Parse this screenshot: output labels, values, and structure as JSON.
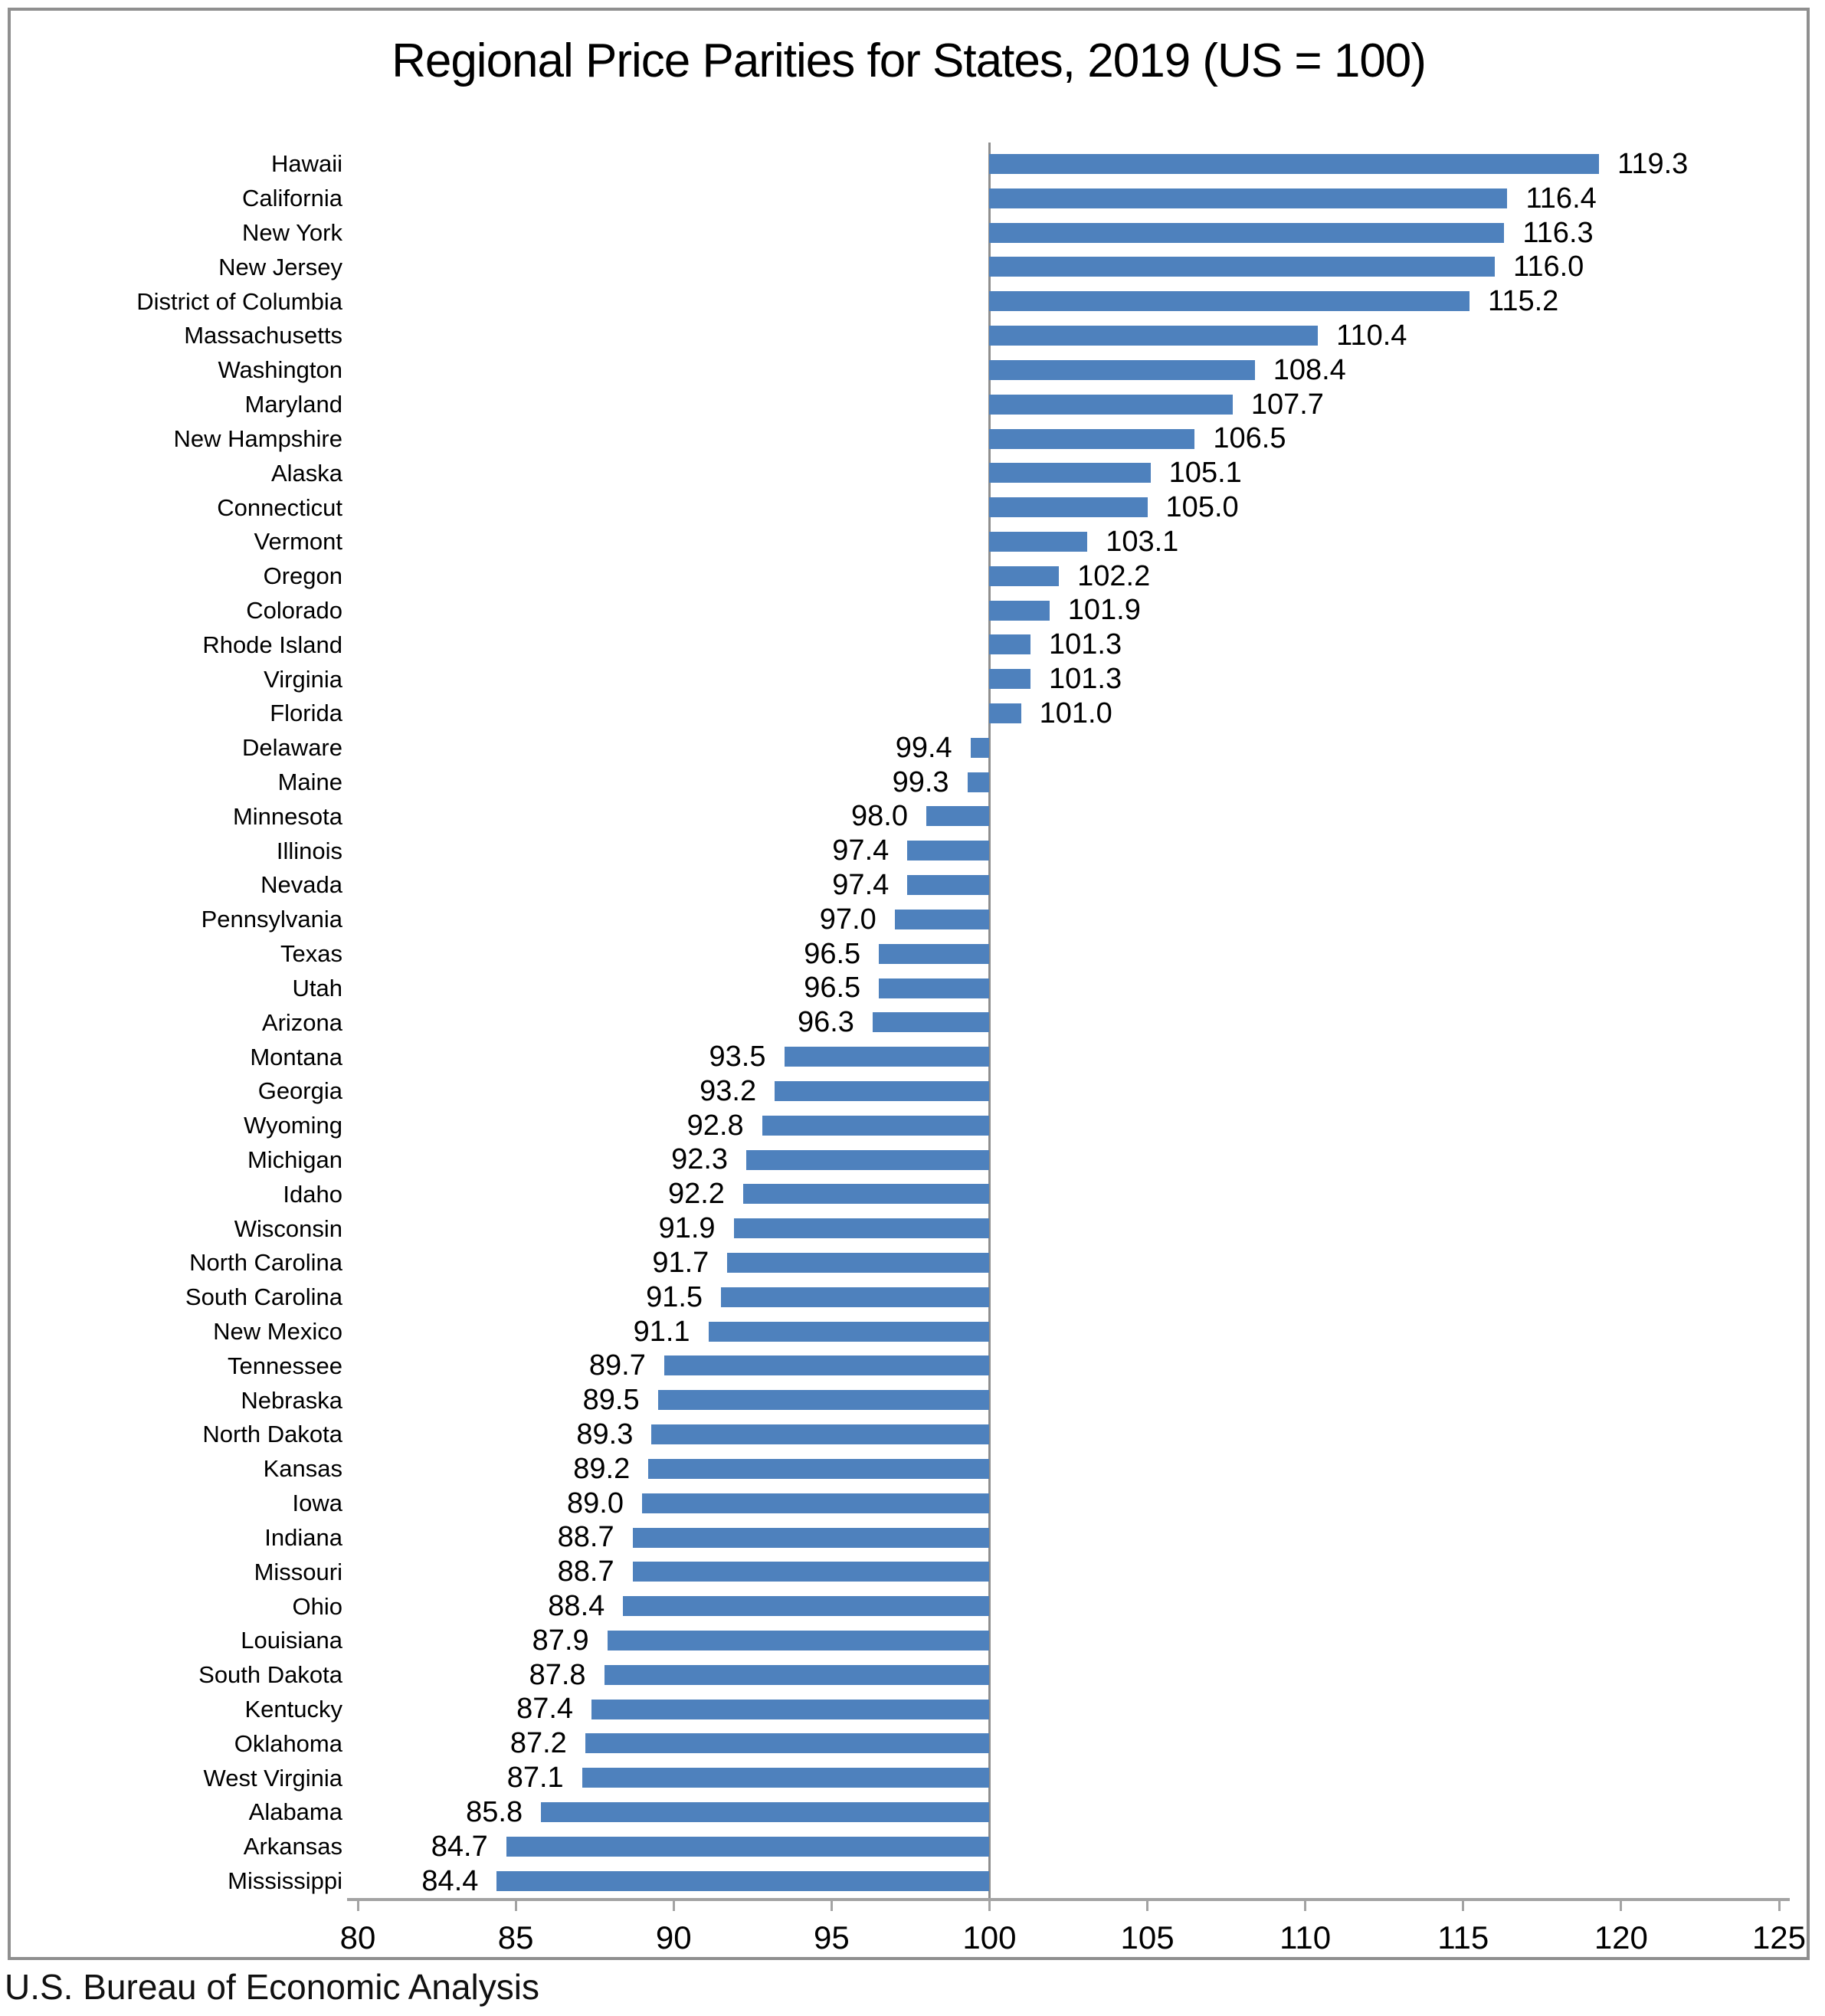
{
  "title": "Regional Price Parities for States, 2019 (US = 100)",
  "source": "U.S. Bureau of Economic Analysis",
  "colors": {
    "bar": "#4E81BD",
    "baseline": "#8e8e8e",
    "axis": "#a3a3a3",
    "frame": "#8f8f8f"
  },
  "chart_data": {
    "type": "bar",
    "orientation": "horizontal",
    "title": "Regional Price Parities for States, 2019 (US = 100)",
    "xlabel": "",
    "ylabel": "",
    "baseline": 100,
    "xlim": [
      80,
      125
    ],
    "x_ticks": [
      80,
      85,
      90,
      95,
      100,
      105,
      110,
      115,
      120,
      125
    ],
    "grid": false,
    "legend": null,
    "value_format_decimals": 1,
    "categories": [
      "Hawaii",
      "California",
      "New York",
      "New Jersey",
      "District of Columbia",
      "Massachusetts",
      "Washington",
      "Maryland",
      "New Hampshire",
      "Alaska",
      "Connecticut",
      "Vermont",
      "Oregon",
      "Colorado",
      "Rhode Island",
      "Virginia",
      "Florida",
      "Delaware",
      "Maine",
      "Minnesota",
      "Illinois",
      "Nevada",
      "Pennsylvania",
      "Texas",
      "Utah",
      "Arizona",
      "Montana",
      "Georgia",
      "Wyoming",
      "Michigan",
      "Idaho",
      "Wisconsin",
      "North Carolina",
      "South Carolina",
      "New Mexico",
      "Tennessee",
      "Nebraska",
      "North Dakota",
      "Kansas",
      "Iowa",
      "Indiana",
      "Missouri",
      "Ohio",
      "Louisiana",
      "South Dakota",
      "Kentucky",
      "Oklahoma",
      "West Virginia",
      "Alabama",
      "Arkansas",
      "Mississippi"
    ],
    "values": [
      119.3,
      116.4,
      116.3,
      116.0,
      115.2,
      110.4,
      108.4,
      107.7,
      106.5,
      105.1,
      105.0,
      103.1,
      102.2,
      101.9,
      101.3,
      101.3,
      101.0,
      99.4,
      99.3,
      98.0,
      97.4,
      97.4,
      97.0,
      96.5,
      96.5,
      96.3,
      93.5,
      93.2,
      92.8,
      92.3,
      92.2,
      91.9,
      91.7,
      91.5,
      91.1,
      89.7,
      89.5,
      89.3,
      89.2,
      89.0,
      88.7,
      88.7,
      88.4,
      87.9,
      87.8,
      87.4,
      87.2,
      87.1,
      85.8,
      84.7,
      84.4
    ]
  }
}
